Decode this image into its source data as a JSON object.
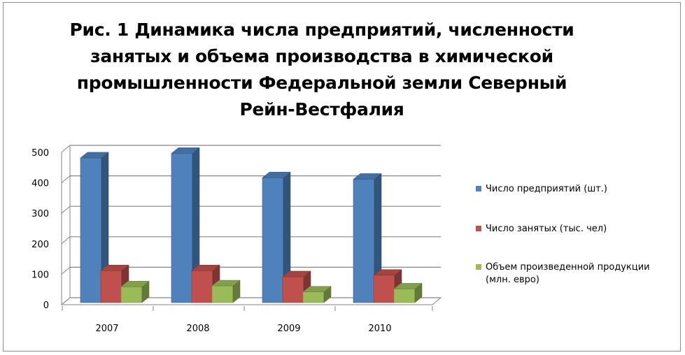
{
  "chart_data": {
    "type": "bar",
    "title": "Рис. 1 Динамика числа предприятий, численности занятых и объема производства в химической промышленности Федеральной земли Северный Рейн-Вестфалия",
    "categories": [
      "2007",
      "2008",
      "2009",
      "2010"
    ],
    "series": [
      {
        "name": "Число предприятий  (шт.)",
        "values": [
          475,
          490,
          410,
          405
        ],
        "color": "#4f81bd"
      },
      {
        "name": "Число занятых (тыс. чел)",
        "values": [
          105,
          105,
          85,
          90
        ],
        "color": "#c0504d"
      },
      {
        "name": "Объем произведенной продукции (млн. евро)",
        "values": [
          52,
          55,
          35,
          45
        ],
        "color": "#9bbb59"
      }
    ],
    "yticks": [
      "0",
      "100",
      "200",
      "300",
      "400",
      "500"
    ],
    "ylim": [
      0,
      500
    ],
    "grid": true,
    "legend_position": "right"
  }
}
